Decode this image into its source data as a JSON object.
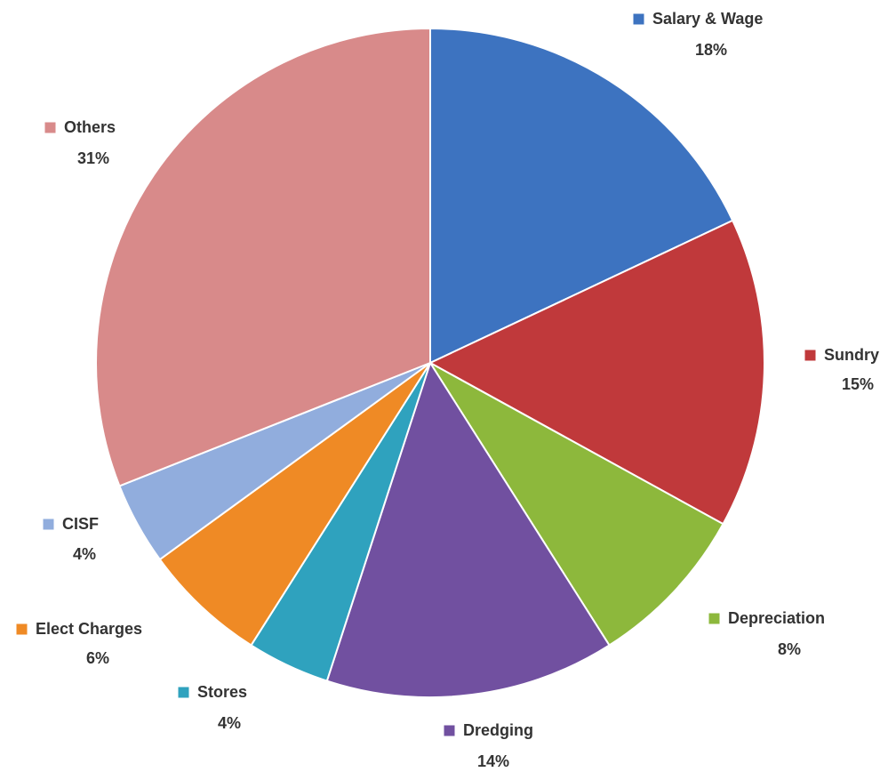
{
  "chart_data": {
    "type": "pie",
    "categories": [
      "Salary & Wage",
      "Sundry",
      "Depreciation",
      "Dredging",
      "Stores",
      "Elect Charges",
      "CISF",
      "Others"
    ],
    "values": [
      18,
      15,
      8,
      14,
      4,
      6,
      4,
      31
    ],
    "value_labels": [
      "18%",
      "15%",
      "8%",
      "14%",
      "4%",
      "6%",
      "4%",
      "31%"
    ],
    "colors": [
      "#3d73c0",
      "#c0393b",
      "#8db83c",
      "#7150a0",
      "#2fa2be",
      "#ef8a25",
      "#91addd",
      "#d88a8a"
    ]
  }
}
